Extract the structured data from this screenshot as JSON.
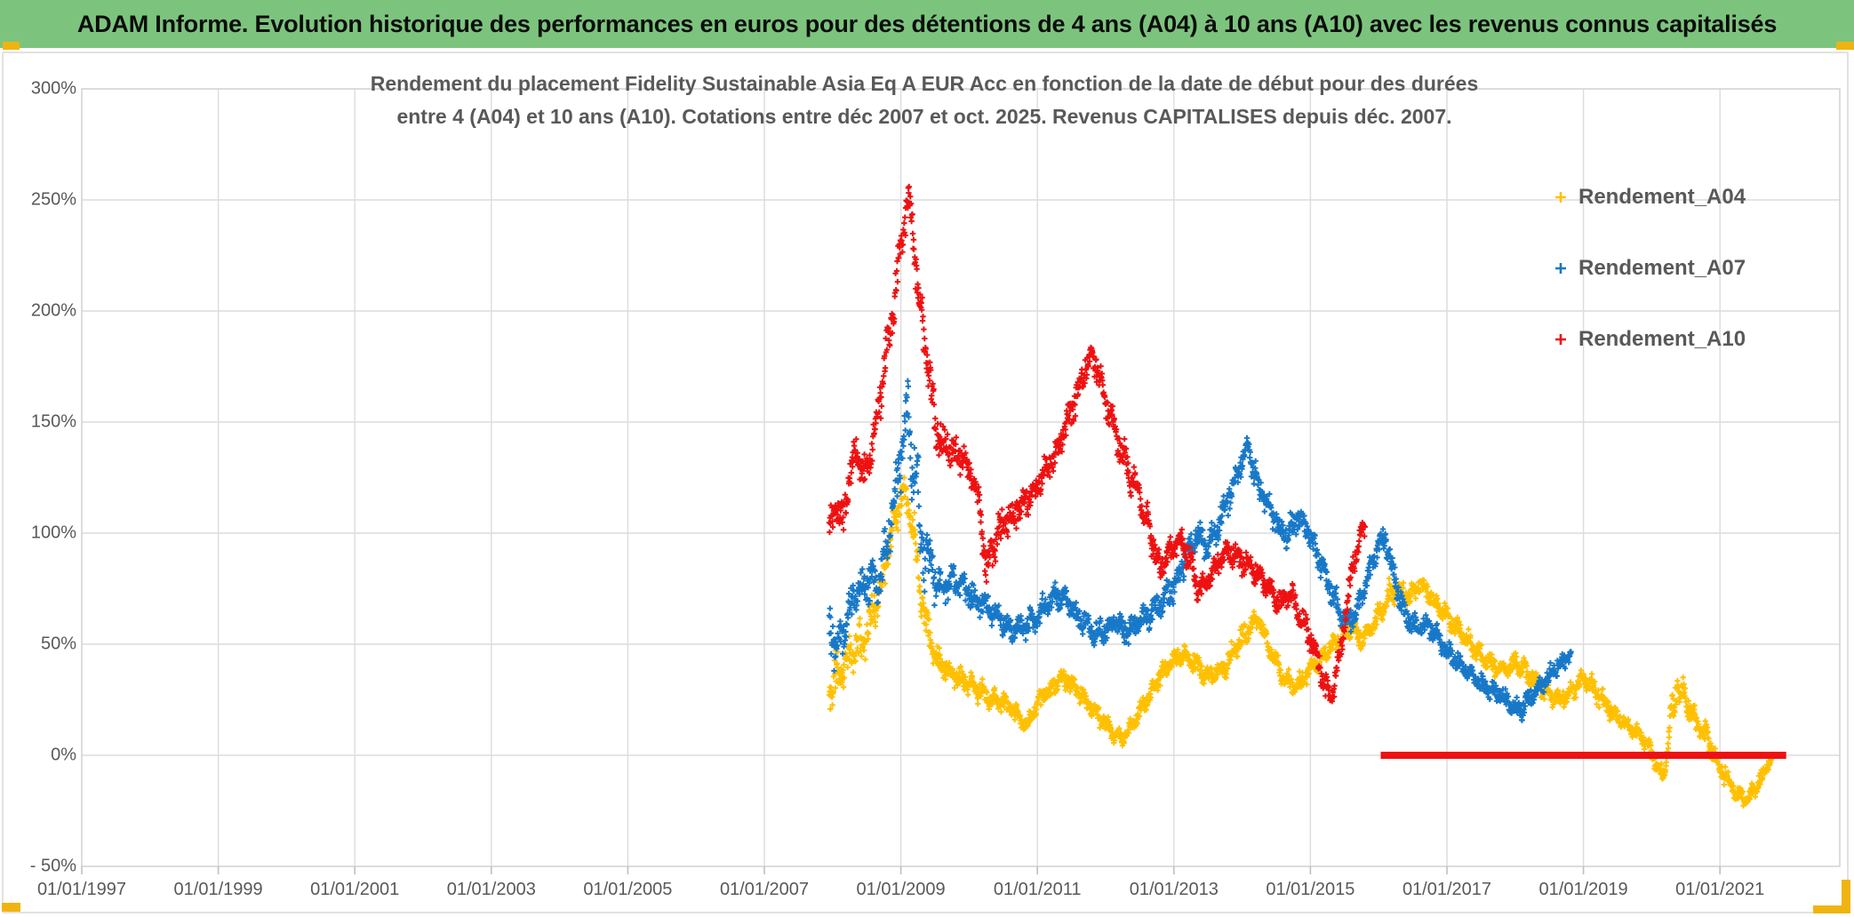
{
  "header": {
    "title": "ADAM Informe. Evolution historique des performances en euros pour des détentions de 4 ans (A04) à 10 ans (A10) avec les revenus connus capitalisés"
  },
  "colors": {
    "header_bg": "#7CC47D",
    "accent_gold": "#F0B411",
    "title_gray": "#595959",
    "grid": "#DCDCDC",
    "axis_border": "#D4D4D4",
    "tick_stub": "#BFBFBF",
    "series_a04": "#FFC000",
    "series_a07": "#1878C8",
    "series_a10": "#EE1111"
  },
  "chart_data": {
    "type": "scatter",
    "title_lines": [
      "Rendement du placement Fidelity Sustainable Asia Eq A EUR Acc en fonction de la date de début pour des durées",
      "entre 4 (A04) et 10 ans (A10). Cotations entre déc 2007 et oct. 2025. Revenus CAPITALISES depuis déc. 2007."
    ],
    "x_axis": {
      "tick_labels": [
        "01/01/1997",
        "01/01/1999",
        "01/01/2001",
        "01/01/2003",
        "01/01/2005",
        "01/01/2007",
        "01/01/2009",
        "01/01/2011",
        "01/01/2013",
        "01/01/2015",
        "01/01/2017",
        "01/01/2019",
        "01/01/2021"
      ],
      "tick_years": [
        1997,
        1999,
        2001,
        2003,
        2005,
        2007,
        2009,
        2011,
        2013,
        2015,
        2017,
        2019,
        2021
      ],
      "domain_years": [
        1997.0,
        2022.75
      ]
    },
    "y_axis": {
      "tick_labels": [
        "300%",
        "250%",
        "200%",
        "150%",
        "100%",
        "50%",
        "0%",
        "- 50%"
      ],
      "tick_values": [
        300,
        250,
        200,
        150,
        100,
        50,
        0,
        -50
      ],
      "domain": [
        -50,
        300
      ],
      "unit": "%"
    },
    "legend": [
      {
        "label": "Rendement_A04",
        "color_key": "series_a04",
        "marker": "plus"
      },
      {
        "label": "Rendement_A07",
        "color_key": "series_a07",
        "marker": "plus"
      },
      {
        "label": "Rendement_A10",
        "color_key": "series_a10",
        "marker": "plus"
      }
    ],
    "anchors_format": "[start_date_year_decimal, rendement_pct_trend, daily_spread_pct]",
    "series": [
      {
        "name": "Rendement_A04",
        "color_key": "series_a04",
        "marker": "plus",
        "anchors": [
          [
            2007.95,
            30,
            18
          ],
          [
            2008.2,
            42,
            12
          ],
          [
            2008.5,
            55,
            12
          ],
          [
            2008.7,
            75,
            12
          ],
          [
            2008.9,
            105,
            12
          ],
          [
            2009.05,
            122,
            10
          ],
          [
            2009.2,
            98,
            14
          ],
          [
            2009.35,
            62,
            12
          ],
          [
            2009.5,
            45,
            8
          ],
          [
            2009.7,
            38,
            8
          ],
          [
            2009.9,
            34,
            7
          ],
          [
            2010.1,
            30,
            7
          ],
          [
            2010.3,
            26,
            6
          ],
          [
            2010.5,
            24,
            6
          ],
          [
            2010.7,
            18,
            6
          ],
          [
            2010.85,
            13,
            5
          ],
          [
            2011.0,
            24,
            6
          ],
          [
            2011.2,
            30,
            6
          ],
          [
            2011.35,
            35,
            6
          ],
          [
            2011.5,
            32,
            6
          ],
          [
            2011.7,
            25,
            6
          ],
          [
            2011.9,
            18,
            6
          ],
          [
            2012.1,
            10,
            5
          ],
          [
            2012.25,
            7,
            4
          ],
          [
            2012.4,
            14,
            5
          ],
          [
            2012.6,
            25,
            6
          ],
          [
            2012.8,
            36,
            6
          ],
          [
            2013.0,
            43,
            6
          ],
          [
            2013.15,
            45,
            6
          ],
          [
            2013.3,
            42,
            6
          ],
          [
            2013.5,
            35,
            6
          ],
          [
            2013.7,
            38,
            6
          ],
          [
            2013.9,
            48,
            7
          ],
          [
            2014.1,
            57,
            7
          ],
          [
            2014.25,
            61,
            7
          ],
          [
            2014.4,
            48,
            7
          ],
          [
            2014.6,
            35,
            6
          ],
          [
            2014.8,
            31,
            6
          ],
          [
            2015.0,
            38,
            6
          ],
          [
            2015.2,
            45,
            7
          ],
          [
            2015.4,
            52,
            7
          ],
          [
            2015.6,
            58,
            7
          ],
          [
            2015.75,
            52,
            7
          ],
          [
            2015.95,
            60,
            7
          ],
          [
            2016.15,
            72,
            8
          ],
          [
            2016.3,
            76,
            8
          ],
          [
            2016.45,
            71,
            7
          ],
          [
            2016.6,
            78,
            7
          ],
          [
            2016.8,
            70,
            7
          ],
          [
            2017.0,
            62,
            6
          ],
          [
            2017.2,
            55,
            6
          ],
          [
            2017.4,
            48,
            6
          ],
          [
            2017.6,
            42,
            6
          ],
          [
            2017.8,
            38,
            6
          ],
          [
            2018.0,
            42,
            6
          ],
          [
            2018.2,
            36,
            6
          ],
          [
            2018.4,
            30,
            6
          ],
          [
            2018.6,
            25,
            6
          ],
          [
            2018.8,
            28,
            6
          ],
          [
            2019.0,
            35,
            6
          ],
          [
            2019.2,
            28,
            6
          ],
          [
            2019.4,
            20,
            6
          ],
          [
            2019.6,
            14,
            5
          ],
          [
            2019.8,
            10,
            5
          ],
          [
            2019.95,
            4,
            5
          ],
          [
            2020.1,
            -6,
            6
          ],
          [
            2020.18,
            -9,
            7
          ],
          [
            2020.28,
            18,
            14
          ],
          [
            2020.38,
            31,
            10
          ],
          [
            2020.5,
            25,
            8
          ],
          [
            2020.65,
            14,
            7
          ],
          [
            2020.8,
            9,
            7
          ],
          [
            2020.95,
            -2,
            6
          ],
          [
            2021.1,
            -10,
            6
          ],
          [
            2021.25,
            -18,
            5
          ],
          [
            2021.4,
            -20,
            5
          ],
          [
            2021.55,
            -13,
            5
          ],
          [
            2021.65,
            -8,
            4
          ],
          [
            2021.75,
            -2,
            4
          ]
        ]
      },
      {
        "name": "Rendement_A07",
        "color_key": "series_a07",
        "marker": "plus",
        "anchors": [
          [
            2007.95,
            60,
            22
          ],
          [
            2008.1,
            52,
            15
          ],
          [
            2008.3,
            70,
            15
          ],
          [
            2008.5,
            80,
            13
          ],
          [
            2008.65,
            76,
            13
          ],
          [
            2008.8,
            95,
            15
          ],
          [
            2008.95,
            122,
            18
          ],
          [
            2009.05,
            150,
            18
          ],
          [
            2009.15,
            143,
            30
          ],
          [
            2009.3,
            100,
            30
          ],
          [
            2009.45,
            83,
            15
          ],
          [
            2009.6,
            74,
            10
          ],
          [
            2009.75,
            79,
            10
          ],
          [
            2009.9,
            76,
            9
          ],
          [
            2010.05,
            72,
            9
          ],
          [
            2010.2,
            68,
            8
          ],
          [
            2010.35,
            63,
            8
          ],
          [
            2010.5,
            60,
            8
          ],
          [
            2010.65,
            56,
            8
          ],
          [
            2010.8,
            57,
            8
          ],
          [
            2010.95,
            62,
            8
          ],
          [
            2011.1,
            67,
            8
          ],
          [
            2011.25,
            72,
            8
          ],
          [
            2011.4,
            70,
            8
          ],
          [
            2011.55,
            64,
            8
          ],
          [
            2011.7,
            60,
            8
          ],
          [
            2011.85,
            54,
            8
          ],
          [
            2012.0,
            57,
            8
          ],
          [
            2012.15,
            60,
            8
          ],
          [
            2012.3,
            56,
            8
          ],
          [
            2012.45,
            59,
            8
          ],
          [
            2012.6,
            62,
            8
          ],
          [
            2012.75,
            67,
            8
          ],
          [
            2012.9,
            71,
            8
          ],
          [
            2013.05,
            79,
            9
          ],
          [
            2013.2,
            91,
            9
          ],
          [
            2013.35,
            99,
            9
          ],
          [
            2013.5,
            93,
            9
          ],
          [
            2013.65,
            104,
            9
          ],
          [
            2013.8,
            116,
            9
          ],
          [
            2013.95,
            129,
            9
          ],
          [
            2014.08,
            139,
            9
          ],
          [
            2014.2,
            125,
            9
          ],
          [
            2014.35,
            114,
            9
          ],
          [
            2014.5,
            105,
            8
          ],
          [
            2014.65,
            99,
            8
          ],
          [
            2014.8,
            107,
            8
          ],
          [
            2014.95,
            101,
            8
          ],
          [
            2015.1,
            91,
            8
          ],
          [
            2015.25,
            79,
            8
          ],
          [
            2015.4,
            67,
            8
          ],
          [
            2015.55,
            59,
            8
          ],
          [
            2015.7,
            67,
            8
          ],
          [
            2015.85,
            81,
            8
          ],
          [
            2016.0,
            95,
            8
          ],
          [
            2016.1,
            97,
            8
          ],
          [
            2016.25,
            77,
            8
          ],
          [
            2016.4,
            63,
            8
          ],
          [
            2016.55,
            57,
            7
          ],
          [
            2016.7,
            59,
            7
          ],
          [
            2016.85,
            54,
            7
          ],
          [
            2017.0,
            47,
            7
          ],
          [
            2017.15,
            42,
            6
          ],
          [
            2017.3,
            38,
            6
          ],
          [
            2017.45,
            34,
            6
          ],
          [
            2017.6,
            30,
            6
          ],
          [
            2017.75,
            28,
            6
          ],
          [
            2017.9,
            24,
            6
          ],
          [
            2018.05,
            20,
            6
          ],
          [
            2018.2,
            25,
            6
          ],
          [
            2018.35,
            31,
            6
          ],
          [
            2018.5,
            35,
            6
          ],
          [
            2018.65,
            41,
            6
          ],
          [
            2018.82,
            45,
            5
          ]
        ]
      },
      {
        "name": "Rendement_A10",
        "color_key": "series_a10",
        "marker": "plus",
        "anchors": [
          [
            2007.95,
            100,
            12
          ],
          [
            2008.05,
            112,
            10
          ],
          [
            2008.15,
            104,
            10
          ],
          [
            2008.25,
            126,
            12
          ],
          [
            2008.35,
            138,
            10
          ],
          [
            2008.45,
            126,
            10
          ],
          [
            2008.55,
            134,
            12
          ],
          [
            2008.65,
            152,
            12
          ],
          [
            2008.75,
            172,
            14
          ],
          [
            2008.85,
            192,
            14
          ],
          [
            2008.95,
            218,
            14
          ],
          [
            2009.05,
            240,
            12
          ],
          [
            2009.12,
            250,
            10
          ],
          [
            2009.2,
            226,
            14
          ],
          [
            2009.3,
            196,
            14
          ],
          [
            2009.4,
            176,
            12
          ],
          [
            2009.5,
            148,
            14
          ],
          [
            2009.6,
            140,
            12
          ],
          [
            2009.75,
            138,
            10
          ],
          [
            2009.9,
            133,
            10
          ],
          [
            2010.05,
            126,
            10
          ],
          [
            2010.15,
            112,
            10
          ],
          [
            2010.25,
            82,
            18
          ],
          [
            2010.35,
            96,
            12
          ],
          [
            2010.5,
            104,
            10
          ],
          [
            2010.65,
            108,
            10
          ],
          [
            2010.8,
            114,
            10
          ],
          [
            2010.95,
            118,
            10
          ],
          [
            2011.1,
            127,
            10
          ],
          [
            2011.25,
            134,
            10
          ],
          [
            2011.4,
            147,
            10
          ],
          [
            2011.55,
            160,
            10
          ],
          [
            2011.7,
            174,
            10
          ],
          [
            2011.8,
            181,
            9
          ],
          [
            2011.9,
            171,
            10
          ],
          [
            2012.0,
            160,
            10
          ],
          [
            2012.1,
            150,
            10
          ],
          [
            2012.2,
            140,
            10
          ],
          [
            2012.35,
            127,
            10
          ],
          [
            2012.5,
            117,
            10
          ],
          [
            2012.65,
            100,
            10
          ],
          [
            2012.8,
            84,
            9
          ],
          [
            2012.95,
            92,
            9
          ],
          [
            2013.1,
            97,
            9
          ],
          [
            2013.25,
            88,
            8
          ],
          [
            2013.35,
            75,
            8
          ],
          [
            2013.5,
            78,
            8
          ],
          [
            2013.65,
            87,
            8
          ],
          [
            2013.8,
            91,
            8
          ],
          [
            2013.95,
            89,
            8
          ],
          [
            2014.1,
            86,
            8
          ],
          [
            2014.25,
            81,
            8
          ],
          [
            2014.4,
            74,
            8
          ],
          [
            2014.55,
            68,
            8
          ],
          [
            2014.7,
            74,
            8
          ],
          [
            2014.85,
            62,
            8
          ],
          [
            2015.0,
            52,
            8
          ],
          [
            2015.1,
            45,
            8
          ],
          [
            2015.2,
            32,
            8
          ],
          [
            2015.3,
            25,
            7
          ],
          [
            2015.42,
            45,
            10
          ],
          [
            2015.52,
            65,
            10
          ],
          [
            2015.62,
            85,
            10
          ],
          [
            2015.72,
            98,
            9
          ],
          [
            2015.8,
            103,
            8
          ]
        ]
      }
    ],
    "zero_line_segment": {
      "series": "Rendement_A10",
      "value_pct": 0,
      "from_year": 2016.03,
      "to_year": 2021.97
    }
  }
}
